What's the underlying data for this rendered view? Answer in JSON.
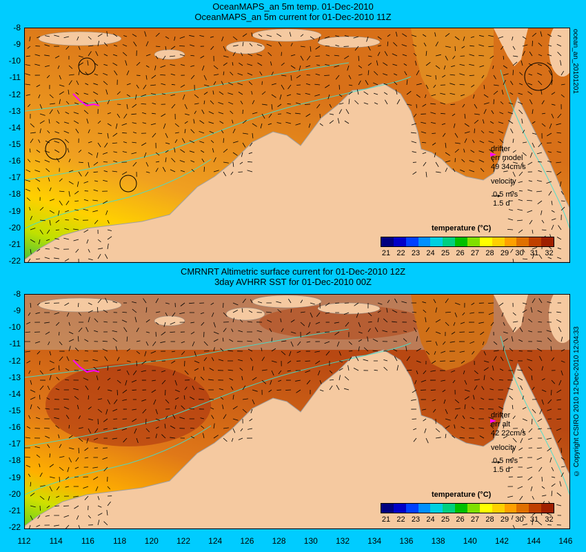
{
  "top": {
    "title_line1": "OceanMAPS_an 5m temp. 01-Dec-2010",
    "title_line2": "OceanMAPS_an 5m current for 01-Dec-2010 11Z",
    "side_label": "ocean_an_20101201",
    "legend": {
      "drifter": "drifter",
      "err_label": "err model",
      "err_value": "49 34cm/s",
      "velocity": "velocity",
      "speed": "0.5 m/s",
      "days": "1.5 d"
    }
  },
  "bottom": {
    "title_line1": "CMRNRT Altimetric surface current for 01-Dec-2010 12Z",
    "title_line2": "3day AVHRR SST for 01-Dec-2010 00Z",
    "side_copyright": "© Copyright CSIRO 2010",
    "side_date": "12-Dec-2010 12:04:33",
    "legend": {
      "drifter": "drifter",
      "err_label": "err alt",
      "err_value": "42 22cm/s",
      "velocity": "velocity",
      "speed": "0.5 m/s",
      "days": "1.5 d"
    }
  },
  "colorbar": {
    "title": "temperature (°C)",
    "ticks": [
      "21",
      "22",
      "23",
      "24",
      "25",
      "26",
      "27",
      "28",
      "29",
      "30",
      "31",
      "32"
    ],
    "colors": [
      "#000080",
      "#0000c8",
      "#0040ff",
      "#0090ff",
      "#00d0e0",
      "#00d080",
      "#00c000",
      "#80e000",
      "#ffff00",
      "#ffd000",
      "#ffa000",
      "#e07000",
      "#c04000",
      "#a02000"
    ]
  },
  "y_ticks": [
    "-8",
    "-9",
    "-10",
    "-11",
    "-12",
    "-13",
    "-14",
    "-15",
    "-16",
    "-17",
    "-18",
    "-19",
    "-20",
    "-21",
    "-22"
  ],
  "x_ticks": [
    "112",
    "114",
    "116",
    "118",
    "120",
    "122",
    "124",
    "126",
    "128",
    "130",
    "132",
    "134",
    "136",
    "138",
    "140",
    "142",
    "144",
    "146"
  ],
  "colors": {
    "background": "#00ccff",
    "land": "#f5c9a0",
    "warm": "#e07a1a",
    "hot": "#b84010",
    "bathymetry": "#40e0d0",
    "drifter": "#ff00ff"
  }
}
